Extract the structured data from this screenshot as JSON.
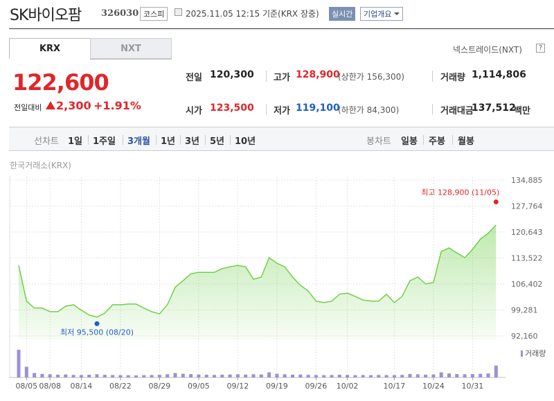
{
  "header": {
    "name": "SK바이오팜",
    "code": "326030",
    "market": "코스피",
    "timestamp": "2025.11.05 12:15",
    "basis": "기준(KRX 장중)",
    "realtime": "실시간",
    "company_menu": "기업개요"
  },
  "market_tabs": {
    "tabs": [
      "KRX",
      "NXT"
    ],
    "active": 0,
    "nxt_link": "넥스트레이드(NXT)",
    "help": "?"
  },
  "quote": {
    "price": "122,600",
    "change_label": "전일대비",
    "change": "2,300",
    "change_rate": "+1.91%"
  },
  "stats": [
    {
      "label": "전일",
      "value": "120,300"
    },
    {
      "label": "고가",
      "value": "128,900",
      "limit": "(상한가 156,300)"
    },
    {
      "label": "거래량",
      "value": "1,114,806"
    },
    {
      "label": "시가",
      "value": "123,500"
    },
    {
      "label": "저가",
      "value": "119,100",
      "limit": "(하한가 84,300)"
    },
    {
      "label": "거래대금",
      "value": "137,512",
      "unit": "백만"
    }
  ],
  "period_bar": {
    "line_chart": "선차트",
    "line_periods": [
      "1일",
      "1주일",
      "3개월",
      "1년",
      "3년",
      "5년",
      "10년"
    ],
    "active_period": 2,
    "candle_chart": "봉차트",
    "candle_periods": [
      "일봉",
      "주봉",
      "월봉"
    ]
  },
  "chart": {
    "type": "area",
    "source": "한국거래소(KRX)",
    "categories": [
      null,
      "08/05",
      null,
      null,
      "08/08",
      null,
      null,
      null,
      "08/14",
      null,
      null,
      null,
      null,
      "08/22",
      null,
      null,
      null,
      null,
      "08/29",
      null,
      null,
      null,
      null,
      "09/05",
      null,
      null,
      null,
      null,
      "09/12",
      null,
      null,
      null,
      null,
      "09/19",
      null,
      null,
      null,
      null,
      "09/26",
      null,
      null,
      null,
      "10/02",
      null,
      null,
      null,
      null,
      null,
      "10/17",
      null,
      null,
      null,
      null,
      "10/24",
      null,
      null,
      null,
      null,
      "10/31",
      null,
      null,
      null
    ],
    "values": [
      111500,
      101700,
      99800,
      99800,
      98800,
      98800,
      100300,
      100700,
      99200,
      97900,
      97300,
      98400,
      100700,
      100700,
      100900,
      100900,
      99800,
      98800,
      98200,
      100700,
      105500,
      107300,
      109200,
      109600,
      109600,
      109600,
      110600,
      111100,
      111500,
      111100,
      107700,
      108300,
      113600,
      112100,
      111100,
      108300,
      106000,
      104500,
      101700,
      101300,
      101700,
      103600,
      103900,
      103000,
      102000,
      101700,
      101700,
      103600,
      101300,
      103000,
      107300,
      108300,
      106400,
      106800,
      115300,
      116300,
      114900,
      113600,
      115900,
      118700,
      120300,
      122600
    ],
    "ylim": [
      92160,
      134885
    ],
    "yticks": [
      {
        "value": 92160,
        "label": "92,160"
      },
      {
        "value": 99281,
        "label": "99,281"
      },
      {
        "value": 106402,
        "label": "106,402"
      },
      {
        "value": 113522,
        "label": "113,522"
      },
      {
        "value": 120643,
        "label": "120,643"
      },
      {
        "value": 127764,
        "label": "127,764"
      },
      {
        "value": 134885,
        "label": "134,885"
      }
    ],
    "color": "#6fcf4a",
    "volume_label": "거래량",
    "volume": [
      2600000,
      1000000,
      420000,
      330000,
      300000,
      260000,
      280000,
      240000,
      230000,
      260000,
      300000,
      250000,
      230000,
      220000,
      210000,
      200000,
      220000,
      230000,
      250000,
      300000,
      420000,
      350000,
      320000,
      280000,
      260000,
      240000,
      260000,
      280000,
      300000,
      270000,
      300000,
      280000,
      480000,
      350000,
      300000,
      260000,
      280000,
      250000,
      230000,
      220000,
      230000,
      260000,
      240000,
      220000,
      230000,
      220000,
      240000,
      230000,
      220000,
      240000,
      330000,
      300000,
      260000,
      280000,
      480000,
      380000,
      320000,
      300000,
      320000,
      350000,
      380000,
      1114806
    ],
    "volume_color": "#9d90d2",
    "annotations": [
      {
        "text": "최고 128,900 (11/05)",
        "value": 128900,
        "color": "#e0262a"
      },
      {
        "text": "최저 95,500 (08/20)",
        "value": 95500,
        "color": "#1f5fc4"
      }
    ]
  }
}
